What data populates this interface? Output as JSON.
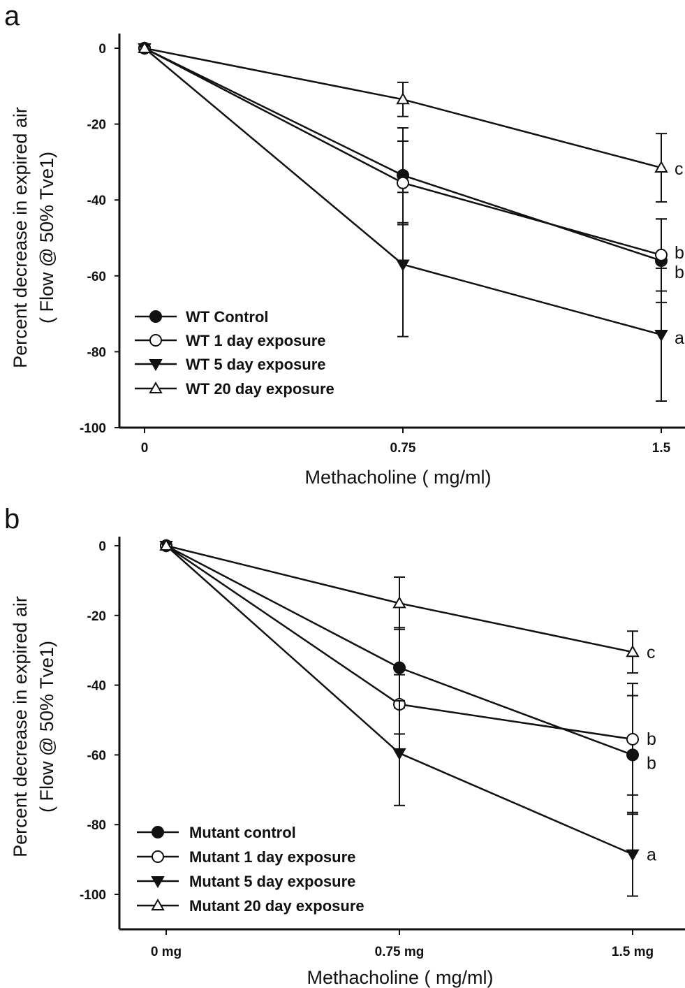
{
  "chart_data": [
    {
      "panel_label": "a",
      "type": "line",
      "categories": [
        "0",
        "0.75",
        "1.5"
      ],
      "xlabel": "Methacholine ( mg/ml)",
      "ylabel": "Percent decrease in expired air",
      "ylabel2": "( Flow @ 50% Tve1)",
      "ylim": [
        -100,
        0
      ],
      "yticks": [
        "0",
        "-20",
        "-40",
        "-60",
        "-80",
        "-100"
      ],
      "grid": false,
      "legend_position": "bottom-left",
      "series": [
        {
          "name": "WT Control",
          "marker": "filled-circle",
          "values": [
            0,
            -33.5,
            -56
          ],
          "error": [
            0,
            12.5,
            11
          ],
          "end_label": ""
        },
        {
          "name": "WT 1 day exposure",
          "marker": "open-circle",
          "values": [
            0,
            -35.5,
            -54.5
          ],
          "error": [
            0,
            11,
            9.5
          ],
          "end_label": "b"
        },
        {
          "name": "WT 5 day exposure",
          "marker": "filled-triangle-down",
          "values": [
            0,
            -57,
            -75.5
          ],
          "error": [
            0,
            19,
            17.5
          ],
          "end_label": "b"
        },
        {
          "name": "WT 20 day exposure",
          "marker": "open-triangle-up",
          "values": [
            0,
            -13.5,
            -31.5
          ],
          "error": [
            0,
            4.5,
            9
          ],
          "end_label": "c"
        }
      ],
      "extra_labels": [
        "a"
      ]
    },
    {
      "panel_label": "b",
      "type": "line",
      "categories": [
        "0 mg",
        "0.75 mg",
        "1.5 mg"
      ],
      "xlabel": "Methacholine ( mg/ml)",
      "ylabel": "Percent decrease in expired air",
      "ylabel2": "( Flow @ 50% Tve1)",
      "ylim": [
        -100,
        0
      ],
      "yticks": [
        "0",
        "-20",
        "-40",
        "-60",
        "-80",
        "-100"
      ],
      "grid": false,
      "legend_position": "bottom-left",
      "series": [
        {
          "name": "Mutant control",
          "marker": "filled-circle",
          "values": [
            0,
            -35,
            -60
          ],
          "error": [
            0,
            11.5,
            17
          ],
          "end_label": "b"
        },
        {
          "name": "Mutant 1 day exposure",
          "marker": "open-circle",
          "values": [
            0,
            -45.5,
            -55.5
          ],
          "error": [
            0,
            8.5,
            16
          ],
          "end_label": "b"
        },
        {
          "name": "Mutant 5 day exposure",
          "marker": "filled-triangle-down",
          "values": [
            0,
            -59.5,
            -88.5
          ],
          "error": [
            0,
            15,
            12
          ],
          "end_label": "a"
        },
        {
          "name": "Mutant 20 day exposure",
          "marker": "open-triangle-up",
          "values": [
            0,
            -16.5,
            -30.5
          ],
          "error": [
            0,
            7.5,
            6
          ],
          "end_label": "c"
        }
      ]
    }
  ]
}
